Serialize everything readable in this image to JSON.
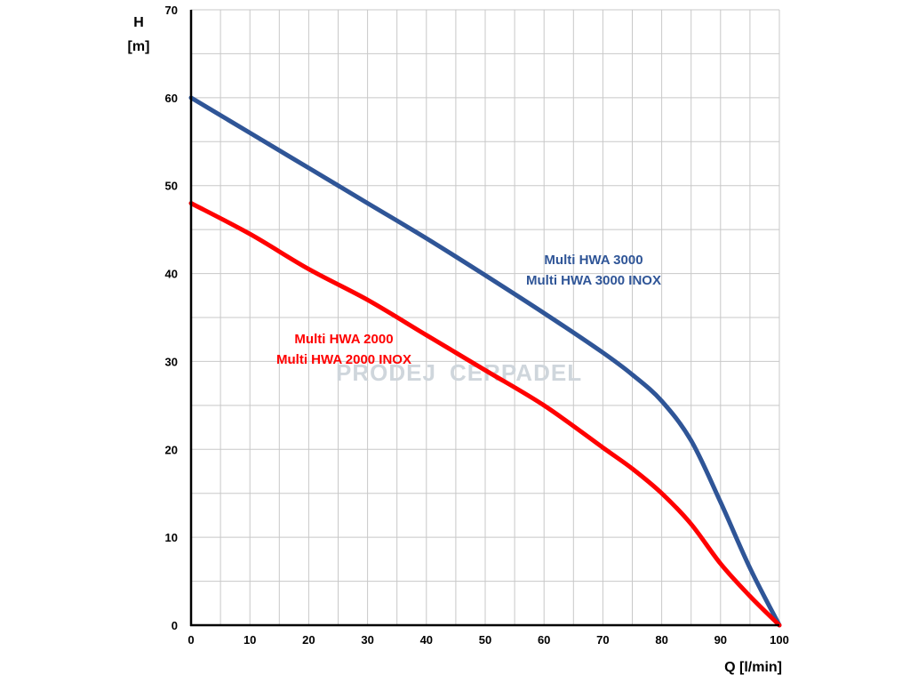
{
  "watermark": {
    "text_left": "PRODEJ",
    "text_right": "CERPADEL"
  },
  "chart_data": {
    "type": "line",
    "xlabel": "Q [l/min]",
    "ylabel_line1": "H",
    "ylabel_line2": "[m]",
    "xlim": [
      0,
      100
    ],
    "ylim": [
      0,
      70
    ],
    "xticks": [
      "0",
      "10",
      "20",
      "30",
      "40",
      "50",
      "60",
      "70",
      "80",
      "90",
      "100"
    ],
    "yticks": [
      "0",
      "10",
      "20",
      "30",
      "40",
      "50",
      "60",
      "70"
    ],
    "grid": true,
    "series": [
      {
        "name": "Multi HWA 3000",
        "name_line2": "Multi HWA 3000 INOX",
        "color": "#2f5597",
        "points": [
          [
            0,
            60
          ],
          [
            10,
            56
          ],
          [
            20,
            52
          ],
          [
            30,
            48
          ],
          [
            40,
            44
          ],
          [
            50,
            39.8
          ],
          [
            60,
            35.5
          ],
          [
            70,
            31
          ],
          [
            75,
            28.5
          ],
          [
            80,
            25.5
          ],
          [
            85,
            21
          ],
          [
            90,
            14
          ],
          [
            95,
            6.5
          ],
          [
            100,
            0
          ]
        ]
      },
      {
        "name": "Multi HWA 2000",
        "name_line2": "Multi HWA 2000 INOX",
        "color": "#ff0000",
        "points": [
          [
            0,
            48
          ],
          [
            10,
            44.5
          ],
          [
            20,
            40.5
          ],
          [
            30,
            37
          ],
          [
            40,
            33
          ],
          [
            50,
            29
          ],
          [
            60,
            25
          ],
          [
            70,
            20.2
          ],
          [
            75,
            17.8
          ],
          [
            80,
            15
          ],
          [
            85,
            11.5
          ],
          [
            90,
            7
          ],
          [
            95,
            3.3
          ],
          [
            100,
            0
          ]
        ]
      }
    ]
  }
}
